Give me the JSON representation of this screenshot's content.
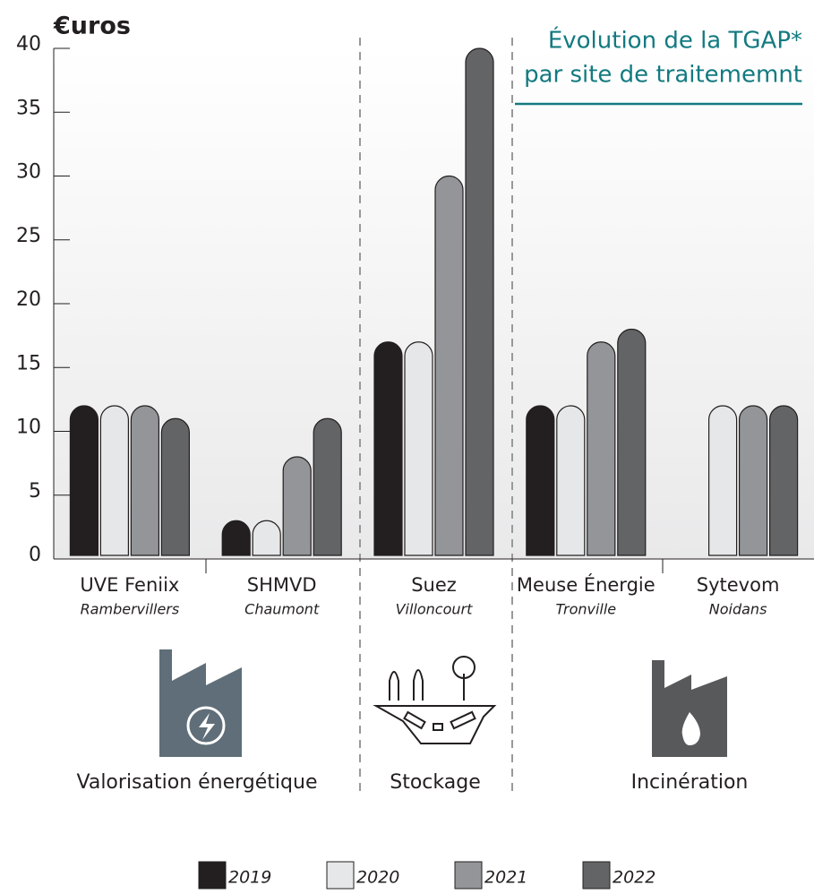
{
  "chart_data": {
    "type": "bar",
    "y_label": "€uros",
    "title_lines": [
      "Évolution de la TGAP*",
      "par site de traitememnt"
    ],
    "categories": [
      "UVE Feniix",
      "SHMVD",
      "Suez",
      "Meuse Énergie",
      "Sytevom"
    ],
    "sublabels": [
      "Rambervillers",
      "Chaumont",
      "Villoncourt",
      "Tronville",
      "Noidans"
    ],
    "sections": [
      "Valorisation énergétique",
      "Stockage",
      "Incinération"
    ],
    "series": [
      {
        "name": "2019",
        "color": "#231f20",
        "values": [
          12,
          3,
          17,
          12,
          null
        ]
      },
      {
        "name": "2020",
        "color": "#e6e7e8",
        "values": [
          12,
          3,
          17,
          12,
          12
        ]
      },
      {
        "name": "2021",
        "color": "#939598",
        "values": [
          12,
          8,
          30,
          17,
          12
        ]
      },
      {
        "name": "2022",
        "color": "#636466",
        "values": [
          11,
          11,
          40,
          18,
          12
        ]
      }
    ],
    "ylim": [
      0,
      40
    ],
    "yticks": [
      0,
      5,
      10,
      15,
      20,
      25,
      30,
      35,
      40
    ]
  }
}
